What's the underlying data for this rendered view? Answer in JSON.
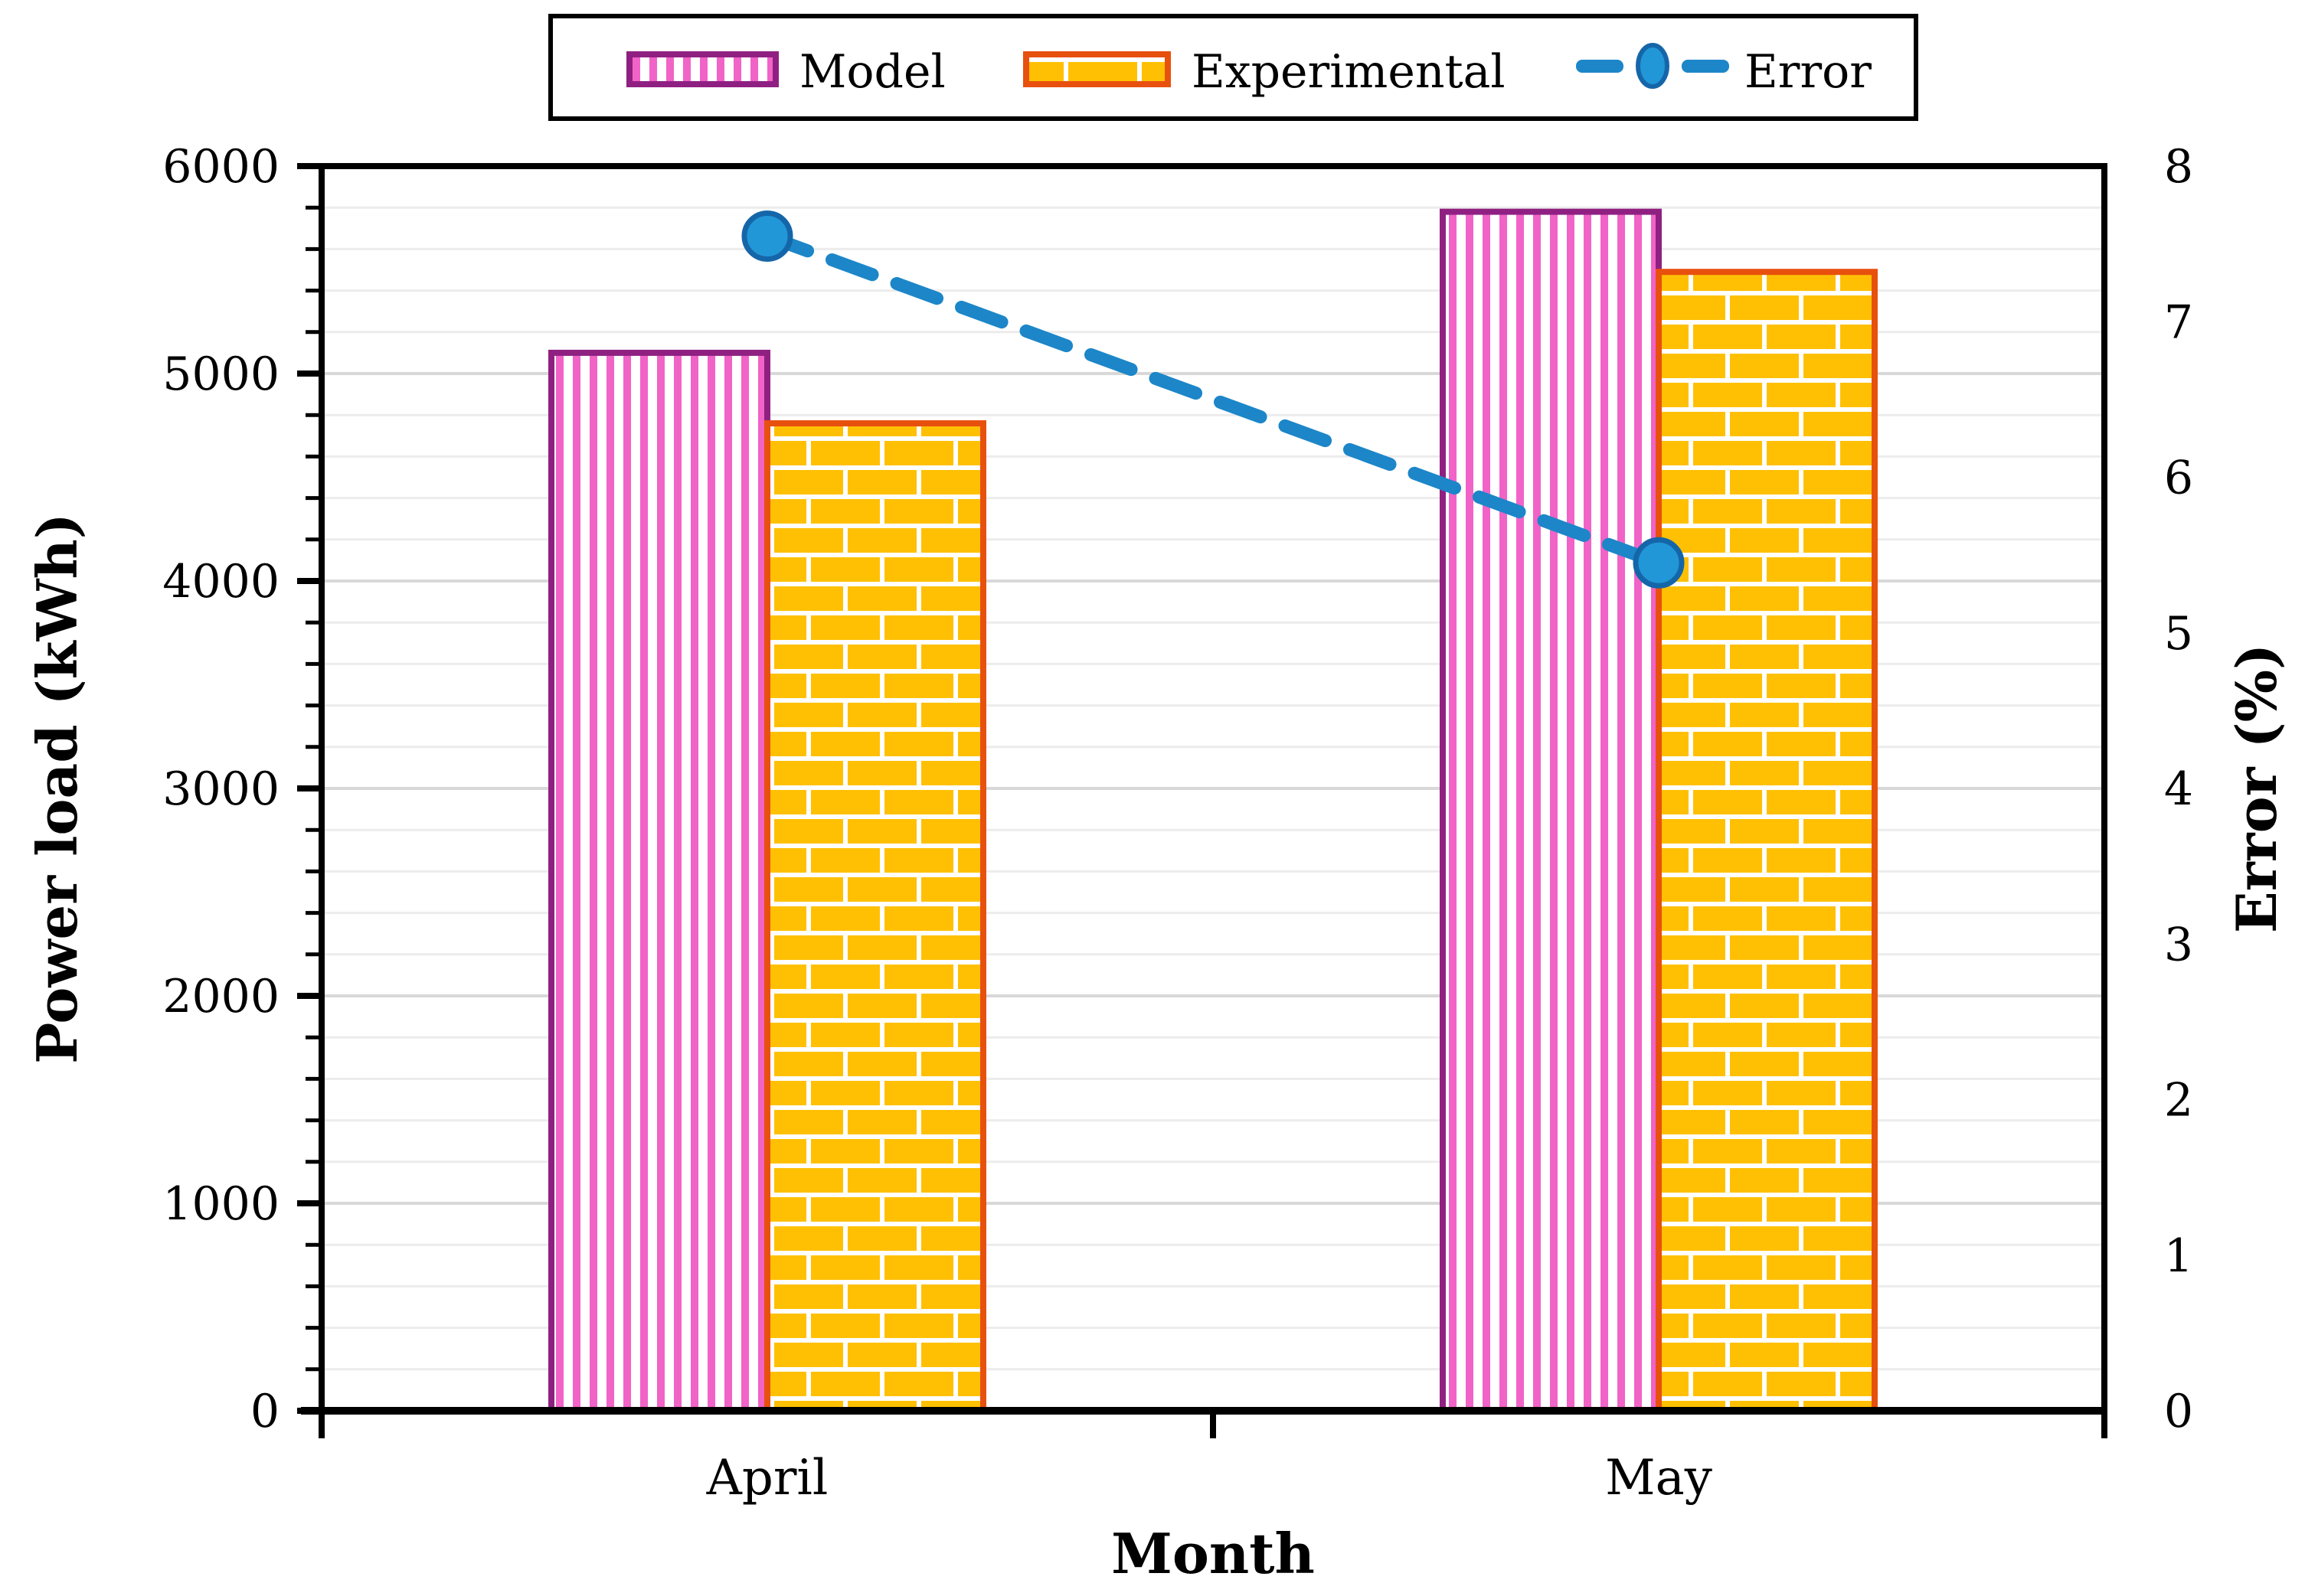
{
  "figure": {
    "background": "#FFFFFF",
    "legend": {
      "position": "top-center",
      "items": [
        {
          "label": "Model",
          "swatch": "pink-vertical-stripes-swatch"
        },
        {
          "label": "Experimental",
          "swatch": "gold-brick-swatch"
        },
        {
          "label": "Error",
          "swatch": "blue-dashed-line-with-marker"
        }
      ]
    }
  },
  "chart_data": {
    "type": "bar",
    "subtype": "grouped-bars-with-dashed-line-overlay",
    "categories": [
      "April",
      "May"
    ],
    "series": [
      {
        "name": "Model",
        "type": "bar",
        "axis": "left",
        "values": [
          5100,
          5780
        ],
        "pattern": "vertical-stripes",
        "fill_color": "#F163C7",
        "border_color": "#8F2082"
      },
      {
        "name": "Experimental",
        "type": "bar",
        "axis": "left",
        "values": [
          4760,
          5490
        ],
        "pattern": "brick",
        "fill_color": "#FFC003",
        "border_color": "#E8500E"
      },
      {
        "name": "Error",
        "type": "line",
        "axis": "right",
        "values": [
          7.55,
          5.45
        ],
        "style": "dashed",
        "marker": "circle",
        "line_color": "#1C86C8",
        "marker_fill": "#2297D7",
        "marker_border": "#1566A9"
      }
    ],
    "left_axis": {
      "title": "Power load (kWh)",
      "min": 0,
      "max": 6000,
      "major_step": 1000,
      "minor_step": 200,
      "tick_labels": [
        "0",
        "1000",
        "2000",
        "3000",
        "4000",
        "5000",
        "6000"
      ]
    },
    "right_axis": {
      "title": "Error (%)",
      "min": 0,
      "max": 8,
      "major_step": 1,
      "tick_labels": [
        "0",
        "1",
        "2",
        "3",
        "4",
        "5",
        "6",
        "7",
        "8"
      ]
    },
    "x_axis": {
      "title": "Month"
    },
    "grid": {
      "horizontal_minor": true,
      "horizontal_major": true,
      "minor_color": "#ECECEC",
      "major_color": "#D8D8D8"
    },
    "frame_color": "#000000"
  }
}
